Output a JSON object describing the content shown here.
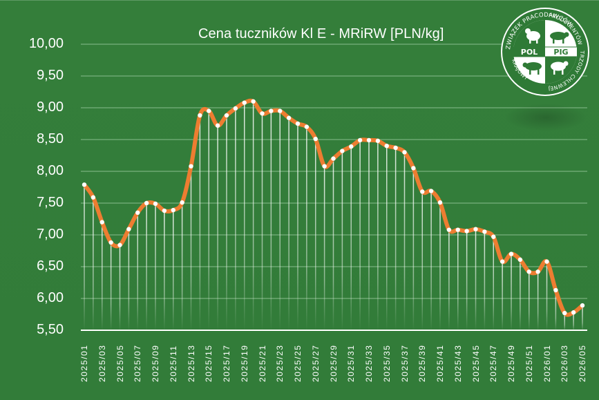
{
  "chart_data": {
    "type": "line",
    "title": "Cena tuczników Kl E - MRiRW [PLN/kg]",
    "xlabel": "",
    "ylabel": "",
    "ylim": [
      5.5,
      10.0
    ],
    "ytick_step": 0.5,
    "yticks": [
      "10,00",
      "9,50",
      "9,00",
      "8,50",
      "8,00",
      "7,50",
      "7,00",
      "6,50",
      "6,00",
      "5,50"
    ],
    "grid": true,
    "legend": null,
    "x": [
      "2025/01",
      "2025/02",
      "2025/03",
      "2025/04",
      "2025/05",
      "2025/06",
      "2025/07",
      "2025/08",
      "2025/09",
      "2025/10",
      "2025/11",
      "2025/12",
      "2025/13",
      "2025/14",
      "2025/15",
      "2025/16",
      "2025/17",
      "2025/18",
      "2025/19",
      "2025/20",
      "2025/21",
      "2025/22",
      "2025/23",
      "2025/24",
      "2025/25",
      "2025/26",
      "2025/27",
      "2025/28",
      "2025/29",
      "2025/30",
      "2025/31",
      "2025/32",
      "2025/33",
      "2025/34",
      "2025/35",
      "2025/36",
      "2025/37",
      "2025/38",
      "2025/39",
      "2025/40",
      "2025/41",
      "2025/42",
      "2025/43",
      "2025/44",
      "2025/45",
      "2025/46",
      "2025/47",
      "2025/48",
      "2025/49",
      "2025/50",
      "2025/51",
      "2025/52",
      "2026/01",
      "2026/02",
      "2026/03",
      "2026/04",
      "2026/05"
    ],
    "xtick_labels_shown": [
      "2025/01",
      "2025/03",
      "2025/05",
      "2025/07",
      "2025/09",
      "2025/11",
      "2025/13",
      "2025/15",
      "2025/17",
      "2025/19",
      "2025/21",
      "2025/23",
      "2025/25",
      "2025/27",
      "2025/29",
      "2025/31",
      "2025/33",
      "2025/35",
      "2025/37",
      "2025/39",
      "2025/41",
      "2025/43",
      "2025/45",
      "2025/47",
      "2025/49",
      "2025/51",
      "2026/01",
      "2026/03",
      "2026/05"
    ],
    "series": [
      {
        "name": "Cena tuczników Kl E",
        "color": "#ed7d31",
        "marker_color": "#ffffff",
        "values": [
          7.79,
          7.59,
          7.2,
          6.88,
          6.84,
          7.09,
          7.35,
          7.5,
          7.49,
          7.38,
          7.39,
          7.51,
          8.08,
          8.88,
          8.95,
          8.72,
          8.88,
          8.99,
          9.08,
          9.1,
          8.91,
          8.95,
          8.95,
          8.84,
          8.75,
          8.7,
          8.51,
          8.08,
          8.2,
          8.32,
          8.39,
          8.49,
          8.49,
          8.48,
          8.4,
          8.37,
          8.3,
          8.05,
          7.68,
          7.69,
          7.51,
          7.08,
          7.08,
          7.06,
          7.09,
          7.05,
          6.97,
          6.58,
          6.7,
          6.61,
          6.42,
          6.42,
          6.58,
          6.13,
          5.77,
          5.78,
          5.89
        ]
      }
    ]
  },
  "colors": {
    "background": "#337d3a",
    "line": "#ed7d31",
    "marker": "#ffffff",
    "grid": "#6da872",
    "axis": "#ffffff"
  },
  "logo": {
    "top_text_left": "KRAJOWY ZWIĄZEK PRACODAWCÓW",
    "top_text_right": "PRODUCENTÓW TRZODY CHLEWNEJ",
    "left_word": "POL",
    "right_word": "PIG"
  }
}
